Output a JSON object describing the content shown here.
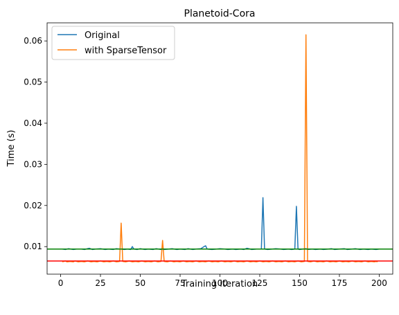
{
  "chart_data": {
    "type": "line",
    "title": "Planetoid-Cora",
    "xlabel": "Training iteration",
    "ylabel": "Time (s)",
    "xlim": [
      -8.5,
      208.5
    ],
    "ylim": [
      0.0033,
      0.0644
    ],
    "x_ticks": [
      0,
      25,
      50,
      75,
      100,
      125,
      150,
      175,
      200
    ],
    "x_tick_labels": [
      "0",
      "25",
      "50",
      "75",
      "100",
      "125",
      "150",
      "175",
      "200"
    ],
    "y_ticks": [
      0.01,
      0.02,
      0.03,
      0.04,
      0.05,
      0.06
    ],
    "y_tick_labels": [
      "0.01",
      "0.02",
      "0.03",
      "0.04",
      "0.05",
      "0.06"
    ],
    "grid": false,
    "legend_position": "upper-left",
    "series": [
      {
        "name": "Original",
        "color": "#1f77b4",
        "x": [
          1,
          3,
          5,
          8,
          10,
          13,
          15,
          18,
          20,
          22,
          25,
          28,
          30,
          33,
          35,
          37,
          38,
          40,
          42,
          44,
          45,
          46,
          48,
          50,
          53,
          55,
          58,
          60,
          63,
          64,
          65,
          68,
          70,
          73,
          75,
          78,
          80,
          83,
          85,
          88,
          90,
          91,
          92,
          95,
          98,
          100,
          103,
          105,
          108,
          110,
          113,
          115,
          117,
          120,
          123,
          125,
          126,
          127,
          128,
          130,
          133,
          135,
          138,
          140,
          143,
          145,
          147,
          148,
          149,
          150,
          152,
          154,
          155,
          158,
          160,
          163,
          165,
          168,
          170,
          172,
          175,
          178,
          180,
          183,
          185,
          188,
          190,
          193,
          195,
          198,
          200
        ],
        "values": [
          0.0094,
          0.0093,
          0.0095,
          0.0093,
          0.0094,
          0.0094,
          0.0093,
          0.0096,
          0.0093,
          0.0094,
          0.0095,
          0.0093,
          0.0094,
          0.0093,
          0.0095,
          0.0094,
          0.0094,
          0.0093,
          0.0094,
          0.0093,
          0.01,
          0.0094,
          0.0093,
          0.0095,
          0.0093,
          0.0094,
          0.0093,
          0.0095,
          0.0093,
          0.0094,
          0.0093,
          0.0094,
          0.0095,
          0.0093,
          0.0094,
          0.0093,
          0.0095,
          0.0093,
          0.0094,
          0.0095,
          0.01,
          0.0102,
          0.0094,
          0.0093,
          0.0094,
          0.0095,
          0.0094,
          0.0093,
          0.0094,
          0.0093,
          0.0094,
          0.0093,
          0.0096,
          0.0093,
          0.0094,
          0.0094,
          0.0094,
          0.0219,
          0.0094,
          0.0093,
          0.0094,
          0.0095,
          0.0094,
          0.0093,
          0.0094,
          0.0093,
          0.0094,
          0.0198,
          0.0094,
          0.0093,
          0.0094,
          0.0095,
          0.0093,
          0.0094,
          0.0093,
          0.0094,
          0.0093,
          0.0094,
          0.0095,
          0.0093,
          0.0094,
          0.0095,
          0.0093,
          0.0094,
          0.0095,
          0.0093,
          0.0094,
          0.0093,
          0.0094,
          0.0093,
          0.0094
        ]
      },
      {
        "name": "with SparseTensor",
        "color": "#ff7f0e",
        "x": [
          1,
          2,
          3,
          4,
          6,
          8,
          9,
          11,
          13,
          15,
          17,
          19,
          21,
          23,
          25,
          27,
          29,
          31,
          33,
          35,
          37,
          38,
          39,
          41,
          43,
          45,
          47,
          49,
          51,
          53,
          55,
          57,
          59,
          61,
          63,
          64,
          65,
          67,
          69,
          71,
          73,
          75,
          77,
          79,
          81,
          83,
          85,
          87,
          89,
          91,
          93,
          95,
          97,
          99,
          101,
          103,
          105,
          107,
          109,
          111,
          113,
          115,
          117,
          119,
          121,
          123,
          125,
          127,
          129,
          131,
          133,
          135,
          137,
          139,
          141,
          143,
          145,
          147,
          149,
          151,
          153,
          154,
          155,
          157,
          159,
          161,
          163,
          165,
          167,
          169,
          171,
          173,
          175,
          177,
          179,
          181,
          183,
          185,
          187,
          189,
          191,
          193,
          195,
          197,
          198,
          199
        ],
        "values": [
          0.0063,
          0.0064,
          0.0065,
          0.0063,
          0.0064,
          0.0063,
          0.0065,
          0.0063,
          0.0064,
          0.0063,
          0.0065,
          0.0063,
          0.0064,
          0.0063,
          0.0065,
          0.0063,
          0.0064,
          0.0063,
          0.0065,
          0.0063,
          0.0064,
          0.0157,
          0.0064,
          0.0063,
          0.0065,
          0.0063,
          0.0064,
          0.0063,
          0.0065,
          0.0063,
          0.0064,
          0.0063,
          0.0065,
          0.0063,
          0.0064,
          0.0115,
          0.0064,
          0.0063,
          0.0065,
          0.0063,
          0.0064,
          0.0063,
          0.0065,
          0.0063,
          0.0064,
          0.0063,
          0.0065,
          0.0063,
          0.0064,
          0.0063,
          0.0065,
          0.0063,
          0.0064,
          0.0063,
          0.0065,
          0.0063,
          0.0064,
          0.0063,
          0.0065,
          0.0063,
          0.0064,
          0.0063,
          0.0065,
          0.0063,
          0.0064,
          0.0063,
          0.0065,
          0.0063,
          0.0064,
          0.0063,
          0.0065,
          0.0063,
          0.0064,
          0.0063,
          0.0065,
          0.0063,
          0.0064,
          0.0063,
          0.0065,
          0.0063,
          0.0064,
          0.0615,
          0.0064,
          0.0063,
          0.0065,
          0.0063,
          0.0064,
          0.0063,
          0.0065,
          0.0063,
          0.0064,
          0.0063,
          0.0065,
          0.0063,
          0.0064,
          0.0063,
          0.0065,
          0.0063,
          0.0064,
          0.0063,
          0.0065,
          0.0063,
          0.0064,
          0.0063,
          0.0064,
          0.0063
        ]
      }
    ],
    "hlines": [
      {
        "value": 0.0094,
        "color": "#008000"
      },
      {
        "value": 0.0065,
        "color": "#ff0000"
      }
    ]
  }
}
